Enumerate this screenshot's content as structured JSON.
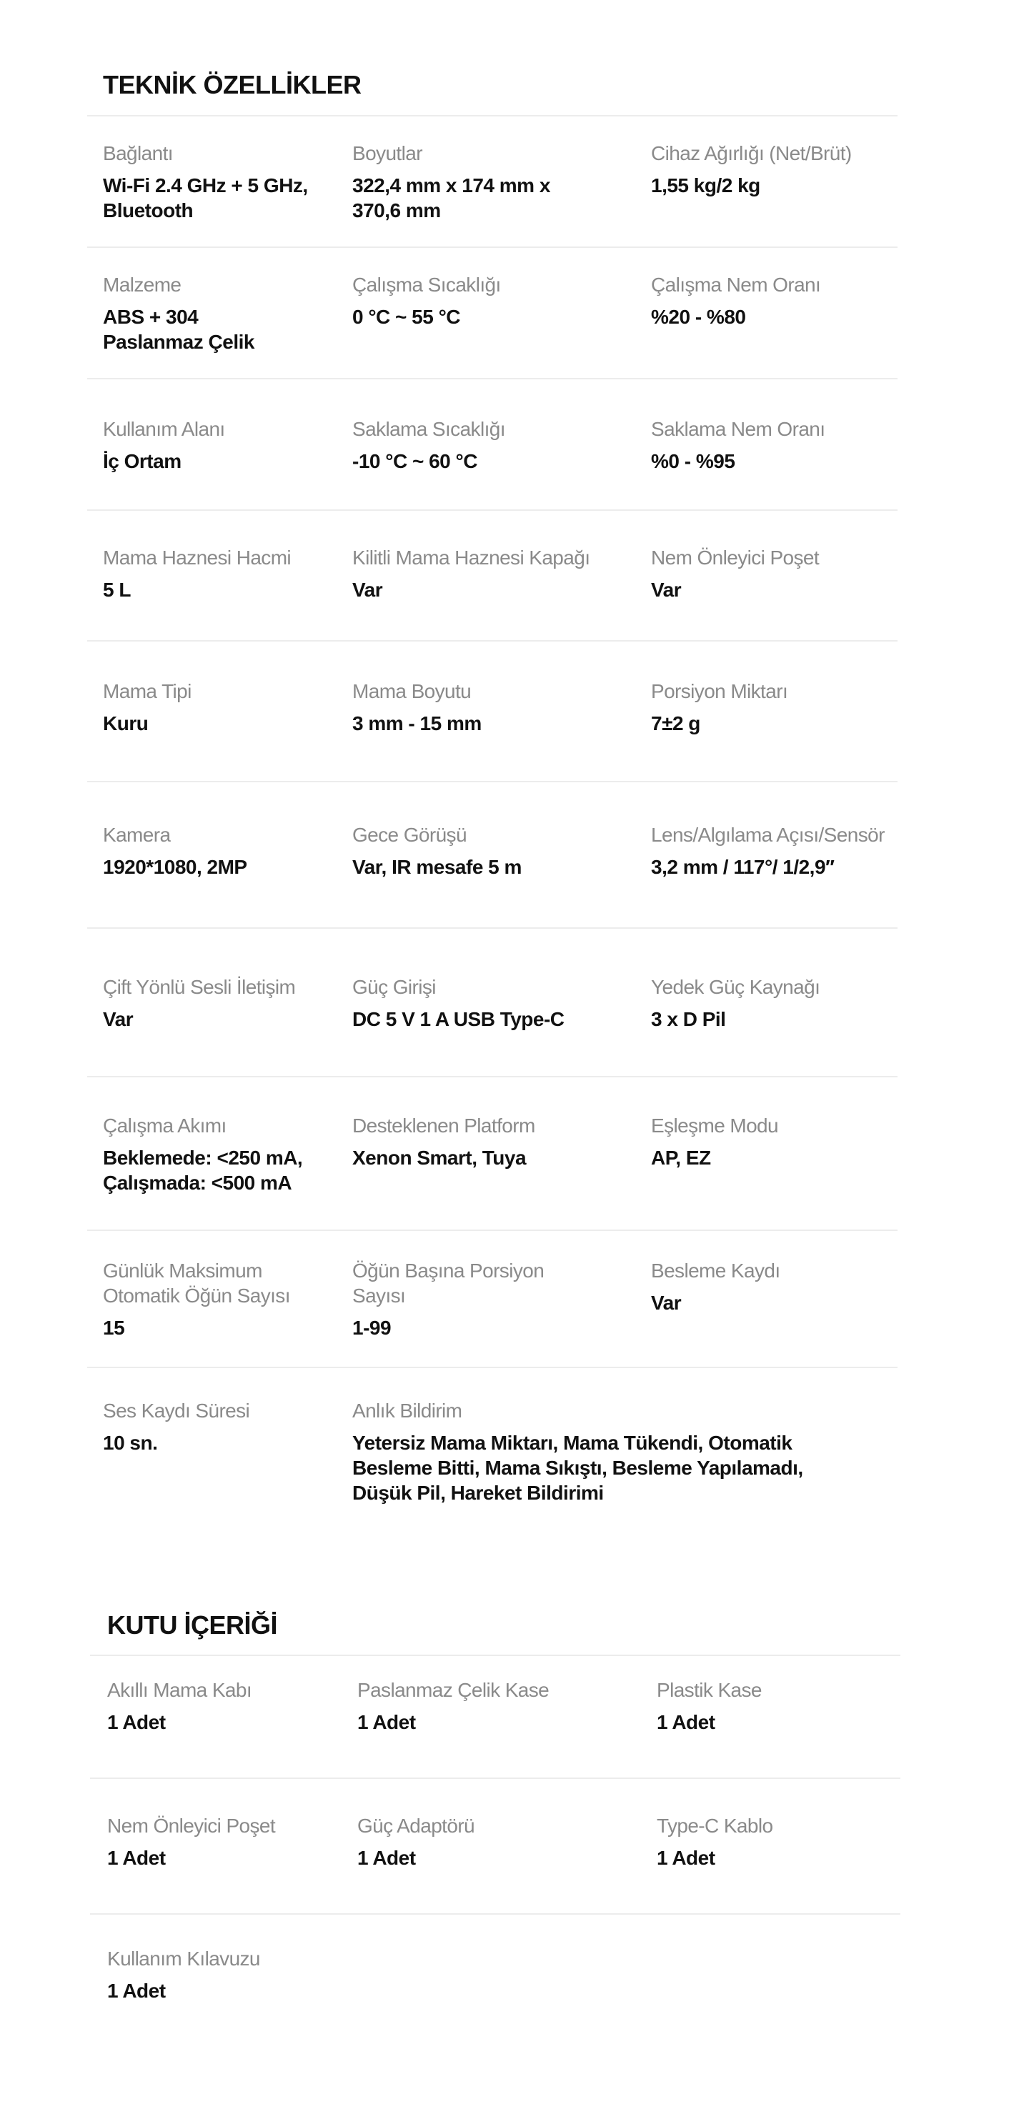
{
  "specs": {
    "title": "TEKNİK ÖZELLİKLER",
    "rows": [
      [
        {
          "label": "Bağlantı",
          "value": "Wi-Fi 2.4 GHz + 5 GHz,\nBluetooth"
        },
        {
          "label": "Boyutlar",
          "value": "322,4 mm x 174 mm x\n370,6 mm"
        },
        {
          "label": "Cihaz Ağırlığı (Net/Brüt)",
          "value": "1,55 kg/2 kg"
        }
      ],
      [
        {
          "label": "Malzeme",
          "value": "ABS + 304\nPaslanmaz Çelik"
        },
        {
          "label": "Çalışma Sıcaklığı",
          "value": "0 °C ~ 55 °C"
        },
        {
          "label": "Çalışma Nem Oranı",
          "value": "%20 - %80"
        }
      ],
      [
        {
          "label": "Kullanım Alanı",
          "value": "İç Ortam"
        },
        {
          "label": "Saklama Sıcaklığı",
          "value": "-10 °C ~ 60 °C"
        },
        {
          "label": "Saklama Nem Oranı",
          "value": "%0 - %95"
        }
      ],
      [
        {
          "label": "Mama Haznesi Hacmi",
          "value": "5 L"
        },
        {
          "label": "Kilitli Mama Haznesi Kapağı",
          "value": "Var"
        },
        {
          "label": "Nem Önleyici Poşet",
          "value": "Var"
        }
      ],
      [
        {
          "label": "Mama Tipi",
          "value": "Kuru"
        },
        {
          "label": "Mama Boyutu",
          "value": "3 mm - 15 mm"
        },
        {
          "label": "Porsiyon Miktarı",
          "value": "7±2 g"
        }
      ],
      [
        {
          "label": "Kamera",
          "value": "1920*1080, 2MP"
        },
        {
          "label": "Gece Görüşü",
          "value": "Var, IR mesafe 5 m"
        },
        {
          "label": "Lens/Algılama Açısı/Sensör",
          "value": "3,2 mm / 117°/ 1/2,9′′"
        }
      ],
      [
        {
          "label": "Çift Yönlü Sesli İletişim",
          "value": "Var"
        },
        {
          "label": "Güç Girişi",
          "value": "DC 5 V 1 A USB Type-C"
        },
        {
          "label": "Yedek Güç Kaynağı",
          "value": "3 x D Pil"
        }
      ],
      [
        {
          "label": "Çalışma Akımı",
          "value": "Beklemede: <250 mA,\nÇalışmada: <500 mA"
        },
        {
          "label": "Desteklenen Platform",
          "value": "Xenon Smart, Tuya"
        },
        {
          "label": "Eşleşme Modu",
          "value": "AP, EZ"
        }
      ],
      [
        {
          "label": "Günlük Maksimum\nOtomatik Öğün Sayısı",
          "value": "15"
        },
        {
          "label": "Öğün Başına Porsiyon\nSayısı",
          "value": "1-99"
        },
        {
          "label": "Besleme Kaydı",
          "value": "Var"
        }
      ],
      [
        {
          "label": "Ses Kaydı Süresi",
          "value": "10 sn."
        },
        {
          "label": "Anlık Bildirim",
          "value": "Yetersiz Mama Miktarı, Mama Tükendi, Otomatik\nBesleme Bitti, Mama Sıkıştı, Besleme Yapılamadı,\nDüşük Pil, Hareket Bildirimi"
        }
      ]
    ]
  },
  "box": {
    "title": "KUTU İÇERİĞİ",
    "rows": [
      [
        {
          "label": "Akıllı Mama Kabı",
          "value": "1 Adet"
        },
        {
          "label": "Paslanmaz Çelik Kase",
          "value": "1 Adet"
        },
        {
          "label": "Plastik Kase",
          "value": "1 Adet"
        }
      ],
      [
        {
          "label": "Nem Önleyici Poşet",
          "value": "1 Adet"
        },
        {
          "label": "Güç Adaptörü",
          "value": "1 Adet"
        },
        {
          "label": "Type-C Kablo",
          "value": "1 Adet"
        }
      ],
      [
        {
          "label": "Kullanım Kılavuzu",
          "value": "1 Adet"
        }
      ]
    ]
  }
}
